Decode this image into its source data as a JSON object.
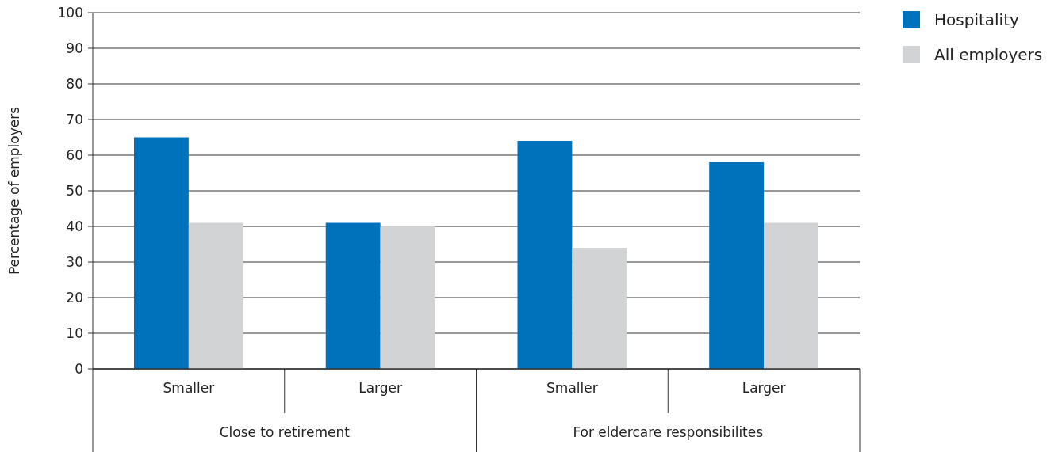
{
  "chart_data": {
    "type": "bar",
    "ylabel": "Percentage of employers",
    "categories": [
      "Smaller",
      "Larger",
      "Smaller",
      "Larger"
    ],
    "series": [
      {
        "name": "Hospitality",
        "color": "#0072bc",
        "values": [
          65,
          41,
          64,
          58
        ]
      },
      {
        "name": "All employers",
        "color": "#d1d3d4",
        "values": [
          41,
          40,
          34,
          41
        ]
      }
    ],
    "annotations": [
      "Close to retirement",
      "For eldercare responsibilites"
    ],
    "ylim": [
      0,
      100
    ],
    "yticks": [
      0,
      10,
      20,
      30,
      40,
      50,
      60,
      70,
      80,
      90,
      100
    ],
    "grid": "y",
    "legend": "top right"
  }
}
